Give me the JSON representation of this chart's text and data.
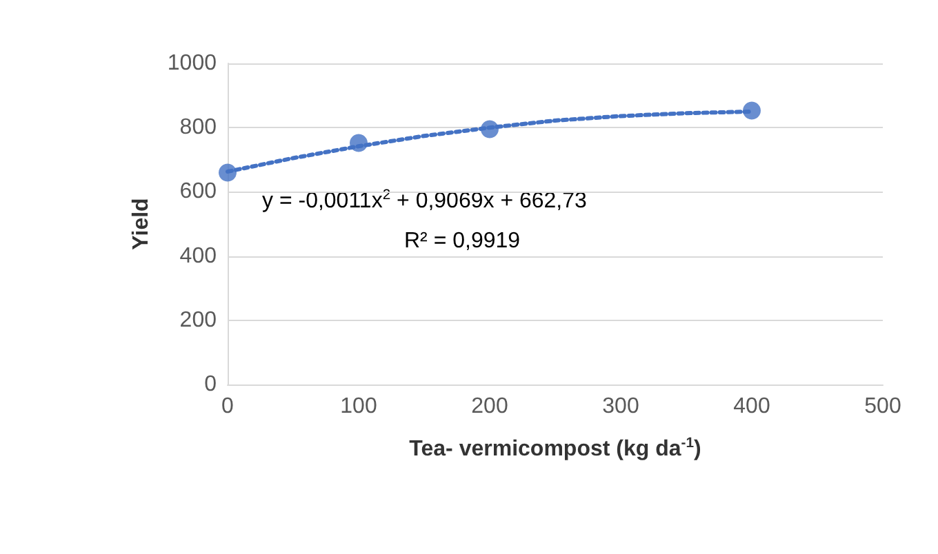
{
  "chart_data": {
    "type": "scatter",
    "xlabel": "Tea- vermicompost (kg da$^{-1}$)",
    "ylabel": "Yield",
    "x": [
      0,
      100,
      200,
      400
    ],
    "series": [
      {
        "color": "#4472c4",
        "marker": "circle",
        "values": [
          660,
          752,
          795,
          853
        ]
      },
      {
        "type": "line",
        "color": "#4472c4",
        "marker": "none",
        "line_style": "dotted",
        "x": [
          0,
          50,
          100,
          150,
          200,
          250,
          300,
          350,
          400
        ],
        "values": [
          663,
          705,
          742,
          774,
          800,
          822,
          836,
          845,
          850
        ]
      }
    ],
    "annotations": [
      "y = -0,0011x$^{2}$ + 0,9069x + 662,73",
      "R² = 0,9919"
    ],
    "xlim": [
      0,
      500
    ],
    "xticks": [
      0,
      100,
      200,
      300,
      400,
      500
    ],
    "ylim": [
      0,
      1000
    ],
    "yticks": [
      0,
      200,
      400,
      600,
      800,
      1000
    ],
    "grid": "y"
  }
}
